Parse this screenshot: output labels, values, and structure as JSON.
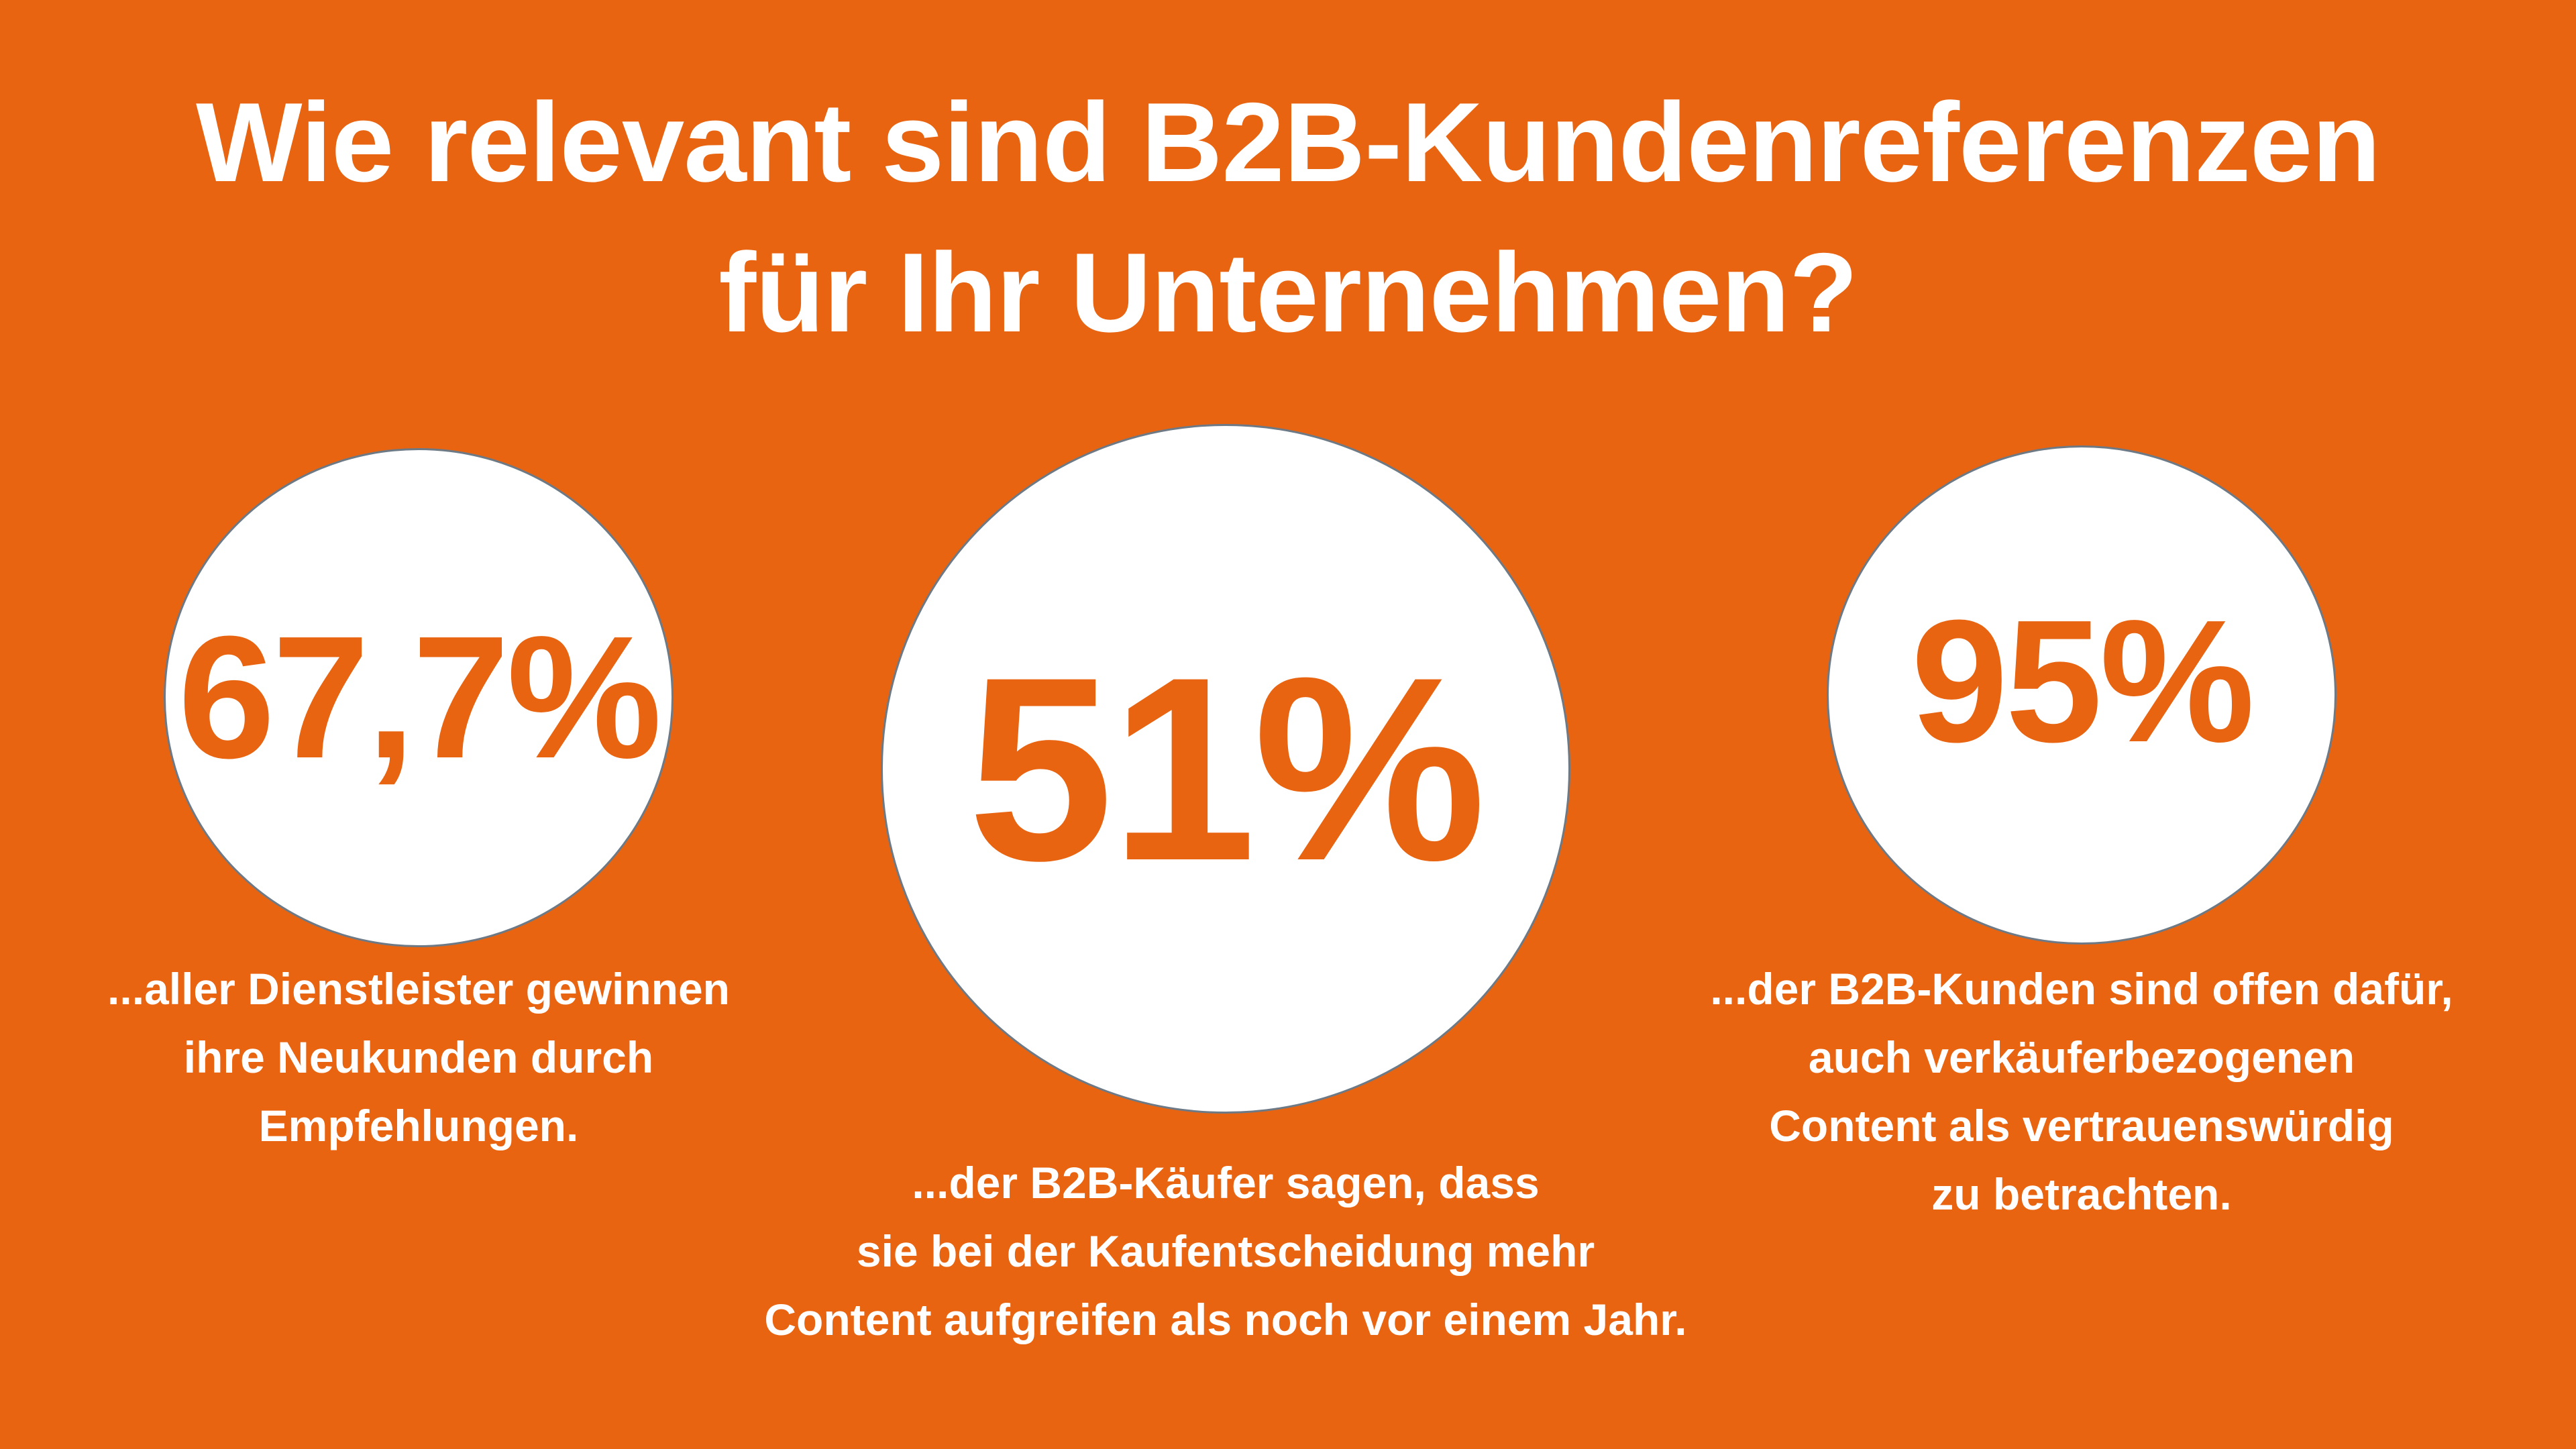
{
  "background_color": "#E86411",
  "title": {
    "line1": "Wie relevant sind B2B-Kundenreferenzen",
    "line2": "für Ihr Unternehmen?"
  },
  "stats": [
    {
      "value": "67,7%",
      "caption": [
        "...aller Dienstleister gewinnen",
        "ihre Neukunden durch",
        "Empfehlungen."
      ]
    },
    {
      "value": "51%",
      "caption": [
        "...der B2B-Käufer sagen, dass",
        "sie bei der Kaufentscheidung mehr",
        "Content aufgreifen als noch vor einem Jahr."
      ]
    },
    {
      "value": "95%",
      "caption": [
        "...der B2B-Kunden sind offen dafür,",
        "auch verkäuferbezogenen",
        "Content als vertrauenswürdig",
        "zu betrachten."
      ]
    }
  ]
}
